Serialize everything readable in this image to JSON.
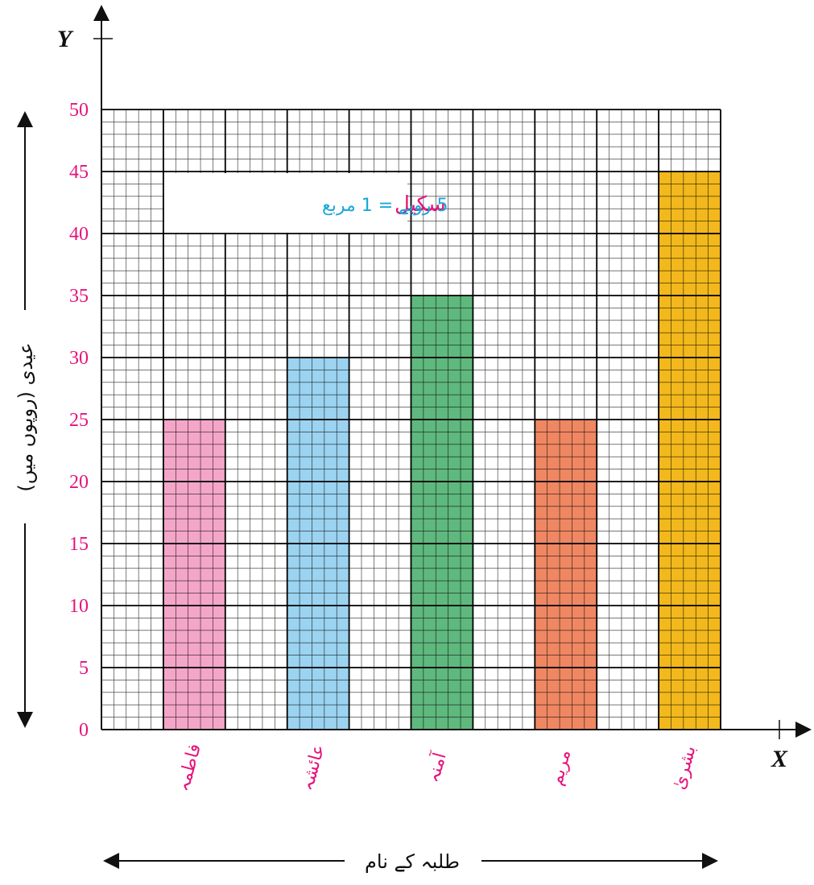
{
  "chart_data": {
    "type": "bar",
    "categories": [
      "فاطمہ",
      "عائشہ",
      "آمنہ",
      "مریم",
      "بشریٰ"
    ],
    "values": [
      25,
      30,
      35,
      25,
      45
    ],
    "bar_colors": [
      "#f4a6c8",
      "#9bd3f0",
      "#5fb87d",
      "#ef8763",
      "#f2b81c"
    ],
    "xlabel": "طلبہ کے نام",
    "ylabel": "عیدی (روپوں میں)",
    "x_axis_letter": "X",
    "y_axis_letter": "Y",
    "ylim": [
      0,
      50
    ],
    "yticks": [
      "0",
      "5",
      "10",
      "15",
      "20",
      "25",
      "30",
      "35",
      "40",
      "45",
      "50"
    ],
    "grid": true,
    "scale_box": {
      "word": "سکیل",
      "text": "5 روپے = 1 مربع"
    },
    "colors": {
      "tick_labels": "#e5137c",
      "category_labels": "#e5137c",
      "scale_word": "#e5137c",
      "scale_text": "#1aa7d9",
      "grid": "#000000"
    }
  }
}
